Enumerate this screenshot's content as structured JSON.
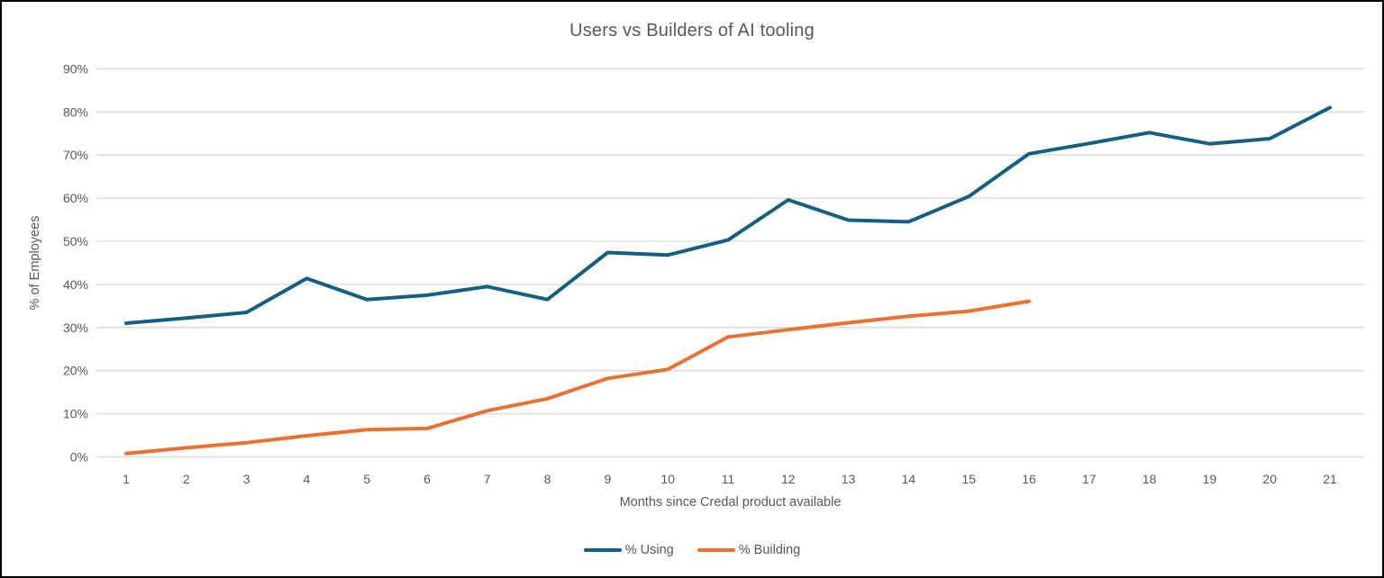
{
  "chart_data": {
    "type": "line",
    "title": "Users vs Builders of AI tooling",
    "xlabel": "Months since Credal product available",
    "ylabel": "% of Employees",
    "x": [
      1,
      2,
      3,
      4,
      5,
      6,
      7,
      8,
      9,
      10,
      11,
      12,
      13,
      14,
      15,
      16,
      17,
      18,
      19,
      20,
      21
    ],
    "series": [
      {
        "name": "% Using",
        "color": "#156082",
        "values": [
          31,
          32.2,
          33.5,
          41.4,
          36.5,
          37.5,
          39.5,
          36.5,
          47.4,
          46.8,
          50.3,
          59.6,
          54.9,
          54.5,
          60.4,
          70.3,
          72.7,
          75.2,
          72.6,
          73.8,
          81
        ]
      },
      {
        "name": "% Building",
        "color": "#E97132",
        "values": [
          0.8,
          2.1,
          3.3,
          4.9,
          6.3,
          6.6,
          10.7,
          13.5,
          18.2,
          20.3,
          27.8,
          29.5,
          31.1,
          32.6,
          33.8,
          36.1
        ]
      }
    ],
    "ylim": [
      0,
      90
    ],
    "ytick_step": 10,
    "ytick_suffix": "%",
    "grid": true,
    "legend_position": "bottom",
    "colors": {
      "text": "#595959",
      "gridline": "#D9D9D9",
      "background": "#FFFFFF",
      "frame_border": "#000000"
    }
  }
}
